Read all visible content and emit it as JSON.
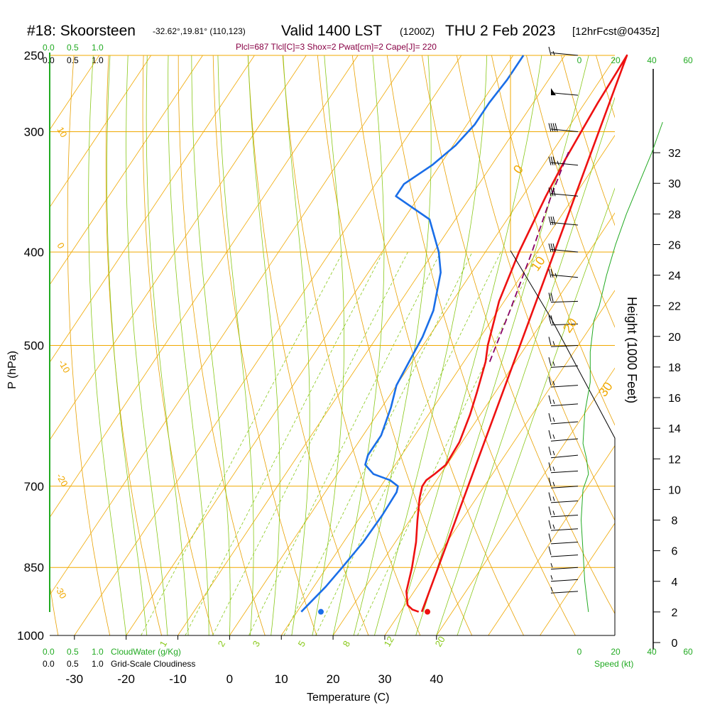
{
  "header": {
    "station": "#18: Skoorsteen",
    "coords": "-32.62°,19.81° (110,123)",
    "valid": "Valid 1400 LST",
    "zulu": "(1200Z)",
    "date": "THU 2 Feb 2023",
    "forecast": "[12hrFcst@0435z]",
    "indices": "Plcl=687 Tlcl[C]=3 Shox=2 Pwat[cm]=2 Cape[J]= 220"
  },
  "colors": {
    "isotherm": "#f0a800",
    "dry_adiabat": "#e8a000",
    "moist_adiabat": "#88c818",
    "mixing_ratio": "#88c818",
    "temperature": "#ee1111",
    "dewpoint": "#1a6ee8",
    "parcel": "#880066",
    "green_text": "#22aa22",
    "indices_text": "#880044"
  },
  "top_scales": {
    "row1": [
      "0.0",
      "0.5",
      "1.0"
    ],
    "row2": [
      "0.0",
      "0.5",
      "1.0"
    ]
  },
  "bottom_scales": {
    "row1": [
      "0.0",
      "0.5",
      "1.0"
    ],
    "row1_label": "CloudWater (g/Kg)",
    "row2": [
      "0.0",
      "0.5",
      "1.0"
    ],
    "row2_label": "Grid-Scale Cloudiness"
  },
  "wind_speed_axis": {
    "ticks": [
      "0",
      "20",
      "40",
      "60"
    ],
    "label": "Speed (kt)"
  },
  "chart_data": {
    "type": "skew-t",
    "title": "#18: Skoorsteen",
    "xlabel": "Temperature (C)",
    "ylabel": "P (hPa)",
    "y2label": "Height (1000 Feet)",
    "xlim": [
      -33,
      45
    ],
    "ylim": [
      1000,
      250
    ],
    "x_ticks": [
      "-30",
      "-20",
      "-10",
      "0",
      "10",
      "20",
      "30",
      "40"
    ],
    "pressure_levels": [
      "250",
      "300",
      "400",
      "500",
      "700",
      "850",
      "1000"
    ],
    "height_ticks": [
      "0",
      "2",
      "4",
      "6",
      "8",
      "10",
      "12",
      "14",
      "16",
      "18",
      "20",
      "22",
      "24",
      "26",
      "28",
      "30",
      "32"
    ],
    "dry_adiabat_labels": [
      "10",
      "0",
      "-10",
      "-20",
      "-30",
      "0",
      "10",
      "20",
      "30"
    ],
    "mixing_ratio_labels": [
      "1",
      "2",
      "3",
      "5",
      "8",
      "12",
      "20"
    ],
    "temperature_profile": [
      {
        "p": 945,
        "t": 33.5
      },
      {
        "p": 940,
        "t": 32.0
      },
      {
        "p": 930,
        "t": 30.5
      },
      {
        "p": 900,
        "t": 28.5
      },
      {
        "p": 850,
        "t": 26.5
      },
      {
        "p": 800,
        "t": 24.0
      },
      {
        "p": 760,
        "t": 21.5
      },
      {
        "p": 720,
        "t": 19.0
      },
      {
        "p": 700,
        "t": 18.0
      },
      {
        "p": 690,
        "t": 18.0
      },
      {
        "p": 680,
        "t": 18.8
      },
      {
        "p": 665,
        "t": 19.8
      },
      {
        "p": 630,
        "t": 19.5
      },
      {
        "p": 590,
        "t": 18.0
      },
      {
        "p": 560,
        "t": 16.5
      },
      {
        "p": 520,
        "t": 14.2
      },
      {
        "p": 500,
        "t": 12.5
      },
      {
        "p": 450,
        "t": 9.0
      },
      {
        "p": 400,
        "t": 6.5
      },
      {
        "p": 350,
        "t": 4.5
      },
      {
        "p": 320,
        "t": 3.5
      },
      {
        "p": 300,
        "t": 3.0
      },
      {
        "p": 280,
        "t": 2.5
      },
      {
        "p": 260,
        "t": 2.2
      },
      {
        "p": 250,
        "t": 2.0
      }
    ],
    "surface_temperature": {
      "p": 945,
      "t": 35.2
    },
    "dewpoint_profile": [
      {
        "p": 945,
        "t": 10.8
      },
      {
        "p": 930,
        "t": 11.2
      },
      {
        "p": 890,
        "t": 12.3
      },
      {
        "p": 850,
        "t": 13.0
      },
      {
        "p": 800,
        "t": 13.8
      },
      {
        "p": 750,
        "t": 14.0
      },
      {
        "p": 710,
        "t": 13.8
      },
      {
        "p": 700,
        "t": 13.3
      },
      {
        "p": 690,
        "t": 11.0
      },
      {
        "p": 680,
        "t": 7.0
      },
      {
        "p": 665,
        "t": 4.2
      },
      {
        "p": 650,
        "t": 3.5
      },
      {
        "p": 620,
        "t": 3.5
      },
      {
        "p": 580,
        "t": 1.8
      },
      {
        "p": 550,
        "t": 0.0
      },
      {
        "p": 520,
        "t": -0.6
      },
      {
        "p": 490,
        "t": -1.2
      },
      {
        "p": 460,
        "t": -2.5
      },
      {
        "p": 420,
        "t": -6.0
      },
      {
        "p": 400,
        "t": -9.0
      },
      {
        "p": 370,
        "t": -15.0
      },
      {
        "p": 350,
        "t": -24.5
      },
      {
        "p": 340,
        "t": -24.5
      },
      {
        "p": 325,
        "t": -21.5
      },
      {
        "p": 310,
        "t": -19.5
      },
      {
        "p": 295,
        "t": -18.5
      },
      {
        "p": 280,
        "t": -18.5
      },
      {
        "p": 265,
        "t": -18.0
      },
      {
        "p": 250,
        "t": -18.0
      }
    ],
    "surface_dewpoint": {
      "p": 945,
      "t": 14.6
    },
    "parcel_profile": [
      {
        "p": 520,
        "t": 15.0
      },
      {
        "p": 460,
        "t": 12.3
      },
      {
        "p": 400,
        "t": 9.0
      },
      {
        "p": 350,
        "t": 5.5
      },
      {
        "p": 320,
        "t": 3.5
      },
      {
        "p": 315,
        "t": 3.2
      }
    ],
    "wind_barbs": [
      {
        "p": 250,
        "speed_kt": 15
      },
      {
        "p": 275,
        "speed_kt": 50
      },
      {
        "p": 300,
        "speed_kt": 40
      },
      {
        "p": 325,
        "speed_kt": 35
      },
      {
        "p": 350,
        "speed_kt": 30
      },
      {
        "p": 375,
        "speed_kt": 30
      },
      {
        "p": 400,
        "speed_kt": 30
      },
      {
        "p": 425,
        "speed_kt": 25
      },
      {
        "p": 450,
        "speed_kt": 20
      },
      {
        "p": 475,
        "speed_kt": 20
      },
      {
        "p": 500,
        "speed_kt": 15
      },
      {
        "p": 525,
        "speed_kt": 15
      },
      {
        "p": 550,
        "speed_kt": 15
      },
      {
        "p": 575,
        "speed_kt": 15
      },
      {
        "p": 600,
        "speed_kt": 15
      },
      {
        "p": 625,
        "speed_kt": 15
      },
      {
        "p": 650,
        "speed_kt": 15
      },
      {
        "p": 675,
        "speed_kt": 15
      },
      {
        "p": 700,
        "speed_kt": 15
      },
      {
        "p": 725,
        "speed_kt": 15
      },
      {
        "p": 750,
        "speed_kt": 15
      },
      {
        "p": 775,
        "speed_kt": 15
      },
      {
        "p": 800,
        "speed_kt": 10
      },
      {
        "p": 825,
        "speed_kt": 10
      },
      {
        "p": 850,
        "speed_kt": 5
      },
      {
        "p": 875,
        "speed_kt": 5
      },
      {
        "p": 900,
        "speed_kt": 5
      }
    ],
    "wind_speed_profile": [
      {
        "h": 2,
        "kt": 5
      },
      {
        "h": 4,
        "kt": 3
      },
      {
        "h": 6,
        "kt": 2
      },
      {
        "h": 8,
        "kt": 1
      },
      {
        "h": 10,
        "kt": 2
      },
      {
        "h": 11,
        "kt": 5
      },
      {
        "h": 12,
        "kt": 4
      },
      {
        "h": 13,
        "kt": 2
      },
      {
        "h": 15,
        "kt": 3
      },
      {
        "h": 17,
        "kt": 6
      },
      {
        "h": 19,
        "kt": 6
      },
      {
        "h": 21,
        "kt": 8
      },
      {
        "h": 22,
        "kt": 11
      },
      {
        "h": 24,
        "kt": 15
      },
      {
        "h": 26,
        "kt": 20
      },
      {
        "h": 28,
        "kt": 26
      },
      {
        "h": 30,
        "kt": 33
      },
      {
        "h": 32,
        "kt": 40
      },
      {
        "h": 34,
        "kt": 46
      }
    ]
  }
}
